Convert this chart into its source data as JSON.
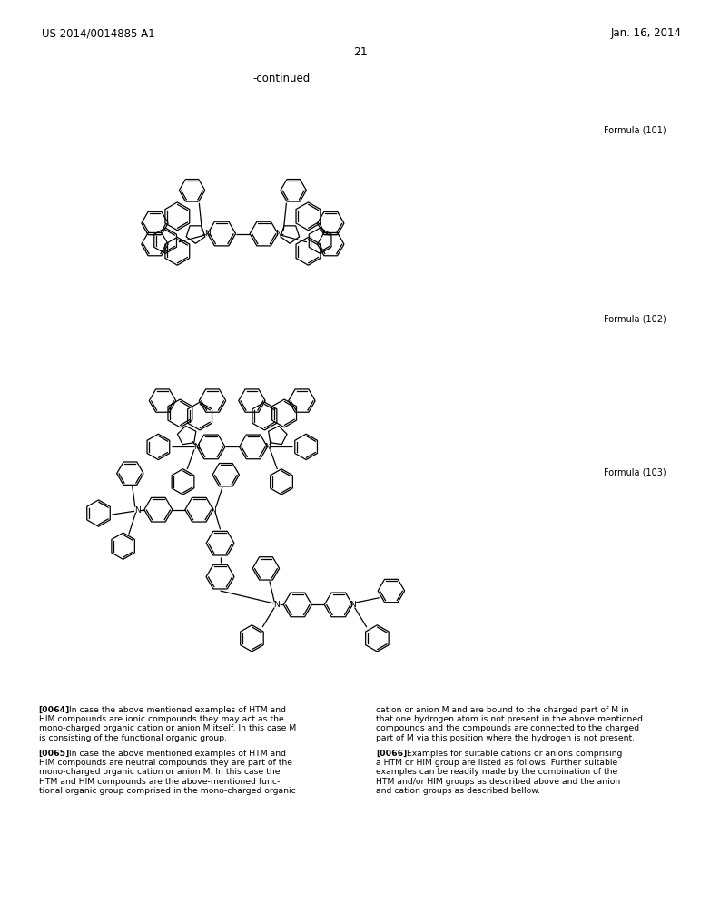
{
  "page_header_left": "US 2014/0014885 A1",
  "page_header_right": "Jan. 16, 2014",
  "page_number": "21",
  "continued_label": "-continued",
  "formula_labels": [
    "Formula (101)",
    "Formula (102)",
    "Formula (103)"
  ],
  "background_color": "#ffffff",
  "text_color": "#000000",
  "para_left": [
    [
      "bold",
      "[0064]"
    ],
    [
      "normal",
      "   In case the above mentioned examples of HTM and"
    ],
    [
      "normal",
      "HIM compounds are ionic compounds they may act as the"
    ],
    [
      "normal",
      "mono-charged organic cation or anion M itself. In this case M"
    ],
    [
      "normal",
      "is consisting of the functional organic group."
    ],
    [
      "blank",
      ""
    ],
    [
      "bold",
      "[0065]"
    ],
    [
      "normal",
      "   In case the above mentioned examples of HTM and"
    ],
    [
      "normal",
      "HIM compounds are neutral compounds they are part of the"
    ],
    [
      "normal",
      "mono-charged organic cation or anion M. In this case the"
    ],
    [
      "normal",
      "HTM and HIM compounds are the above-mentioned func-"
    ],
    [
      "normal",
      "tional organic group comprised in the mono-charged organic"
    ]
  ],
  "para_right": [
    [
      "normal",
      "cation or anion M and are bound to the charged part of M in"
    ],
    [
      "normal",
      "that one hydrogen atom is not present in the above mentioned"
    ],
    [
      "normal",
      "compounds and the compounds are connected to the charged"
    ],
    [
      "normal",
      "part of M via this position where the hydrogen is not present."
    ],
    [
      "blank",
      ""
    ],
    [
      "bold",
      "[0066]"
    ],
    [
      "normal",
      "   Examples for suitable cations or anions comprising"
    ],
    [
      "normal",
      "a HTM or HIM group are listed as follows. Further suitable"
    ],
    [
      "normal",
      "examples can be readily made by the combination of the"
    ],
    [
      "normal",
      "HTM and/or HIM groups as described above and the anion"
    ],
    [
      "normal",
      "and cation groups as described bellow."
    ]
  ]
}
